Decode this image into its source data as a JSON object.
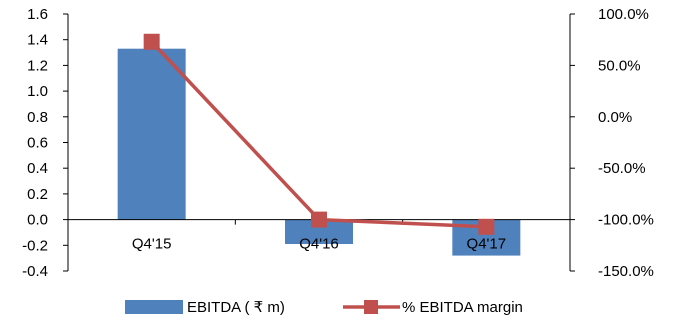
{
  "chart_data": {
    "type": "bar",
    "categories": [
      "Q4'15",
      "Q4'16",
      "Q4'17"
    ],
    "series": [
      {
        "name": "EBITDA ( ₹ m)",
        "type": "bar",
        "axis": "left",
        "values": [
          1.33,
          -0.19,
          -0.28
        ],
        "color": "#4F81BD"
      },
      {
        "name": "% EBITDA margin",
        "type": "line",
        "axis": "right",
        "values": [
          73.0,
          -100.0,
          -107.0
        ],
        "color": "#C0504D"
      }
    ],
    "y_left": {
      "ylim": [
        -0.4,
        1.6
      ],
      "ticks": [
        "1.6",
        "1.4",
        "1.2",
        "1.0",
        "0.8",
        "0.6",
        "0.4",
        "0.2",
        "0.0",
        "-0.2",
        "-0.4"
      ],
      "tick_values": [
        1.6,
        1.4,
        1.2,
        1.0,
        0.8,
        0.6,
        0.4,
        0.2,
        0.0,
        -0.2,
        -0.4
      ]
    },
    "y_right": {
      "ylim": [
        -150,
        100
      ],
      "ticks": [
        "100.0%",
        "50.0%",
        "0.0%",
        "-50.0%",
        "-100.0%",
        "-150.0%"
      ],
      "tick_values": [
        100,
        50,
        0,
        -50,
        -100,
        -150
      ]
    },
    "title": "",
    "xlabel": "",
    "ylabel": "",
    "grid": false,
    "legend_position": "bottom"
  }
}
